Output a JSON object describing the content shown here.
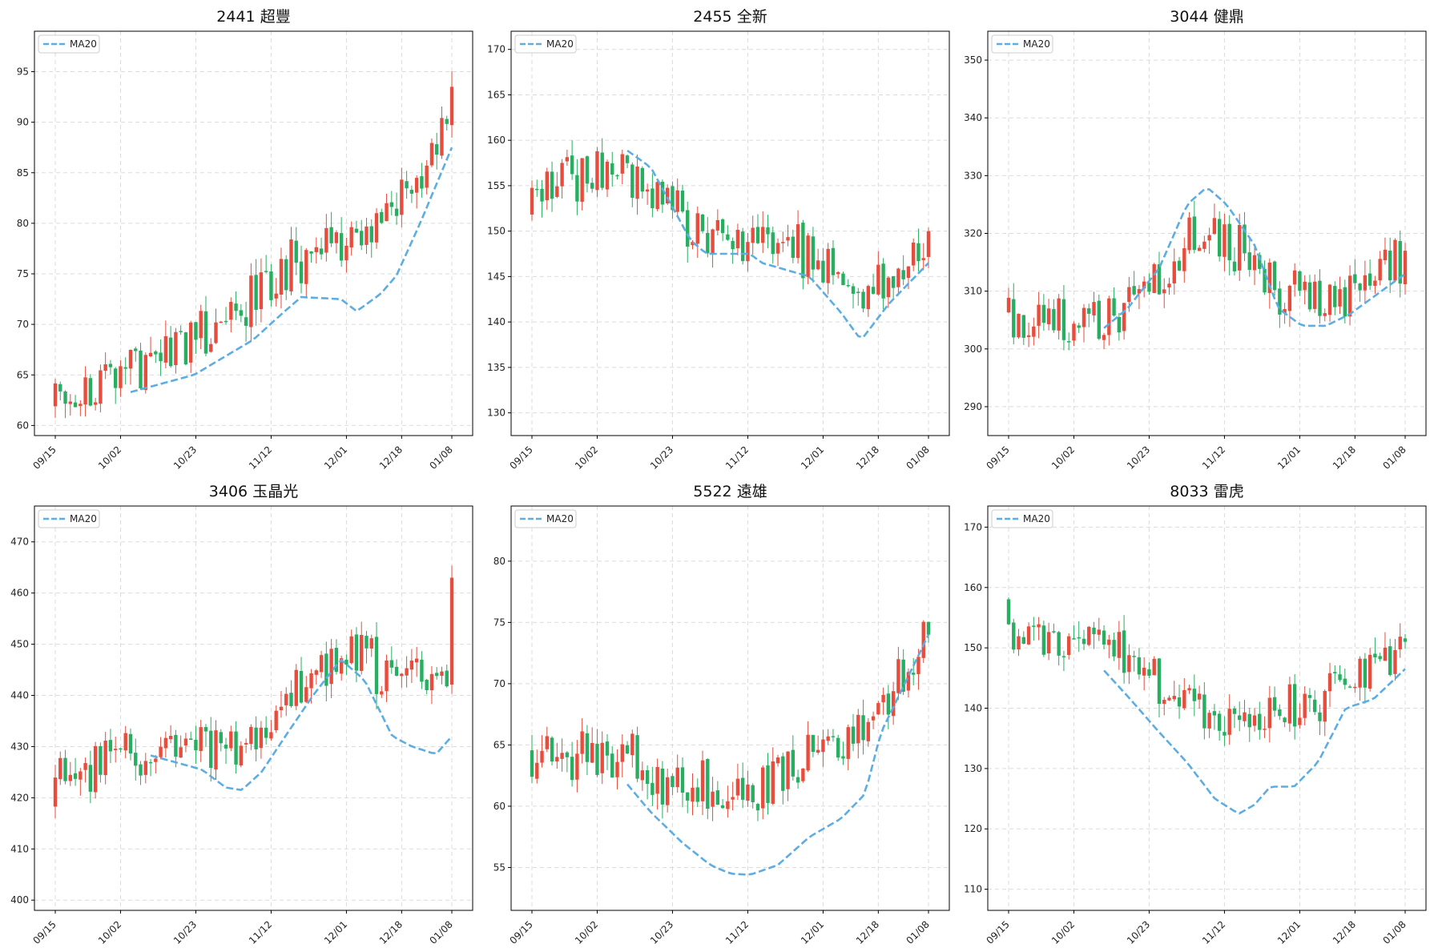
{
  "colors": {
    "up": "#e74c3c",
    "down": "#27ae60",
    "ma": "#5dade2"
  },
  "x_ticks": [
    "09/15",
    "10/02",
    "10/23",
    "11/12",
    "12/01",
    "12/18",
    "01/08"
  ],
  "chart_data": [
    {
      "type": "candlestick",
      "title": "2441 超豐",
      "legend": "MA20",
      "legend_position": "top-left",
      "grid": true,
      "ylim": [
        59,
        99
      ],
      "yticks": [
        60,
        65,
        70,
        75,
        80,
        85,
        90,
        95
      ],
      "start": 62,
      "end": 93.5,
      "vol": 0.013,
      "ma_start": 63.2,
      "ma_points": [
        [
          0.18,
          63.2
        ],
        [
          0.35,
          65
        ],
        [
          0.5,
          68.5
        ],
        [
          0.57,
          71
        ],
        [
          0.62,
          72.7
        ],
        [
          0.72,
          72.5
        ],
        [
          0.76,
          71.3
        ],
        [
          0.82,
          73
        ],
        [
          0.86,
          74.8
        ],
        [
          0.92,
          80
        ],
        [
          1.0,
          87.5
        ]
      ]
    },
    {
      "type": "candlestick",
      "title": "2455 全新",
      "legend": "MA20",
      "legend_position": "top-left",
      "grid": true,
      "ylim": [
        127.5,
        172
      ],
      "yticks": [
        130,
        135,
        140,
        145,
        150,
        155,
        160,
        165,
        170
      ],
      "start": 152,
      "end": 150,
      "vol": 0.018,
      "ma_points": [
        [
          0.23,
          159.2
        ],
        [
          0.3,
          157
        ],
        [
          0.35,
          153
        ],
        [
          0.4,
          149
        ],
        [
          0.44,
          147.5
        ],
        [
          0.55,
          147.5
        ],
        [
          0.58,
          146.5
        ],
        [
          0.7,
          145
        ],
        [
          0.78,
          141
        ],
        [
          0.83,
          138
        ],
        [
          0.9,
          142
        ],
        [
          1.0,
          146.5
        ]
      ]
    },
    {
      "type": "candlestick",
      "title": "3044 健鼎",
      "legend": "MA20",
      "legend_position": "top-left",
      "grid": true,
      "ylim": [
        285,
        355
      ],
      "yticks": [
        290,
        300,
        310,
        320,
        330,
        340,
        350
      ],
      "start": 306,
      "end": 317,
      "vol": 0.015,
      "ma_points": [
        [
          0.23,
          303
        ],
        [
          0.3,
          307
        ],
        [
          0.38,
          314
        ],
        [
          0.45,
          325
        ],
        [
          0.5,
          328
        ],
        [
          0.55,
          325
        ],
        [
          0.62,
          318
        ],
        [
          0.68,
          307
        ],
        [
          0.74,
          304
        ],
        [
          0.8,
          304
        ],
        [
          0.86,
          306
        ],
        [
          0.92,
          309
        ],
        [
          1.0,
          313
        ]
      ]
    },
    {
      "type": "candlestick",
      "title": "3406 玉晶光",
      "legend": "MA20",
      "legend_position": "top-left",
      "grid": true,
      "ylim": [
        398,
        477
      ],
      "yticks": [
        400,
        410,
        420,
        430,
        440,
        450,
        460,
        470
      ],
      "start": 418,
      "end": 463,
      "vol": 0.016,
      "ma_points": [
        [
          0.23,
          428.5
        ],
        [
          0.3,
          427
        ],
        [
          0.37,
          425.5
        ],
        [
          0.43,
          422
        ],
        [
          0.47,
          421.5
        ],
        [
          0.52,
          425
        ],
        [
          0.58,
          432
        ],
        [
          0.65,
          440
        ],
        [
          0.72,
          447
        ],
        [
          0.78,
          443
        ],
        [
          0.85,
          432
        ],
        [
          0.9,
          430
        ],
        [
          0.96,
          428.5
        ],
        [
          1.0,
          432
        ]
      ]
    },
    {
      "type": "candlestick",
      "title": "5522 遠雄",
      "legend": "MA20",
      "legend_position": "top-left",
      "grid": true,
      "ylim": [
        51.5,
        84.5
      ],
      "yticks": [
        55,
        60,
        65,
        70,
        75,
        80
      ],
      "start": 64.5,
      "end": 74,
      "vol": 0.02,
      "ma_points": [
        [
          0.23,
          62.2
        ],
        [
          0.3,
          59.5
        ],
        [
          0.38,
          57
        ],
        [
          0.45,
          55.2
        ],
        [
          0.5,
          54.5
        ],
        [
          0.55,
          54.4
        ],
        [
          0.62,
          55.2
        ],
        [
          0.7,
          57.5
        ],
        [
          0.78,
          59
        ],
        [
          0.84,
          61
        ],
        [
          0.88,
          66
        ],
        [
          0.94,
          70
        ],
        [
          1.0,
          74
        ]
      ]
    },
    {
      "type": "candlestick",
      "title": "8033 雷虎",
      "legend": "MA20",
      "legend_position": "top-left",
      "grid": true,
      "ylim": [
        106.5,
        173.5
      ],
      "yticks": [
        110,
        120,
        130,
        140,
        150,
        160,
        170
      ],
      "start": 158,
      "end": 151,
      "vol": 0.02,
      "ma_points": [
        [
          0.23,
          147
        ],
        [
          0.3,
          142
        ],
        [
          0.38,
          136
        ],
        [
          0.45,
          131
        ],
        [
          0.52,
          125
        ],
        [
          0.58,
          122.5
        ],
        [
          0.62,
          124
        ],
        [
          0.66,
          127
        ],
        [
          0.72,
          127
        ],
        [
          0.78,
          131
        ],
        [
          0.85,
          140
        ],
        [
          0.92,
          141.5
        ],
        [
          1.0,
          146.5
        ]
      ]
    }
  ]
}
